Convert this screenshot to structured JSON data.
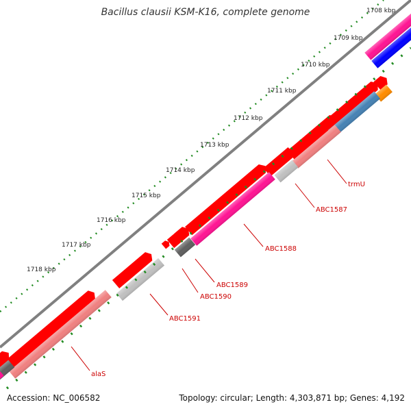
{
  "title": "Bacillus clausii KSM-K16, complete genome",
  "footer": {
    "accession": "Accession: NC_006582",
    "summary": "Topology: circular; Length: 4,303,871 bp; Genes: 4,192"
  },
  "ticks": [
    "1708 kbp",
    "1709 kbp",
    "1710 kbp",
    "1711 kbp",
    "1712 kbp",
    "1713 kbp",
    "1714 kbp",
    "1715 kbp",
    "1716 kbp",
    "1717 kbp",
    "1718 kbp"
  ],
  "gene_labels": [
    "trmU",
    "ABC1587",
    "ABC1588",
    "ABC1589",
    "ABC1590",
    "ABC1591",
    "alaS"
  ],
  "colors": {
    "backbone": "#808080",
    "cds": "#ff0000",
    "trna_salmon": "#f08080",
    "magenta": "#ff1493",
    "light_gray": "#c0c0c0",
    "dark_gray": "#606060",
    "steel_blue": "#4682b4",
    "orange": "#ff8c00",
    "blue": "#0000ff",
    "tick_green": "#228b22",
    "label_red": "#cc0000"
  }
}
